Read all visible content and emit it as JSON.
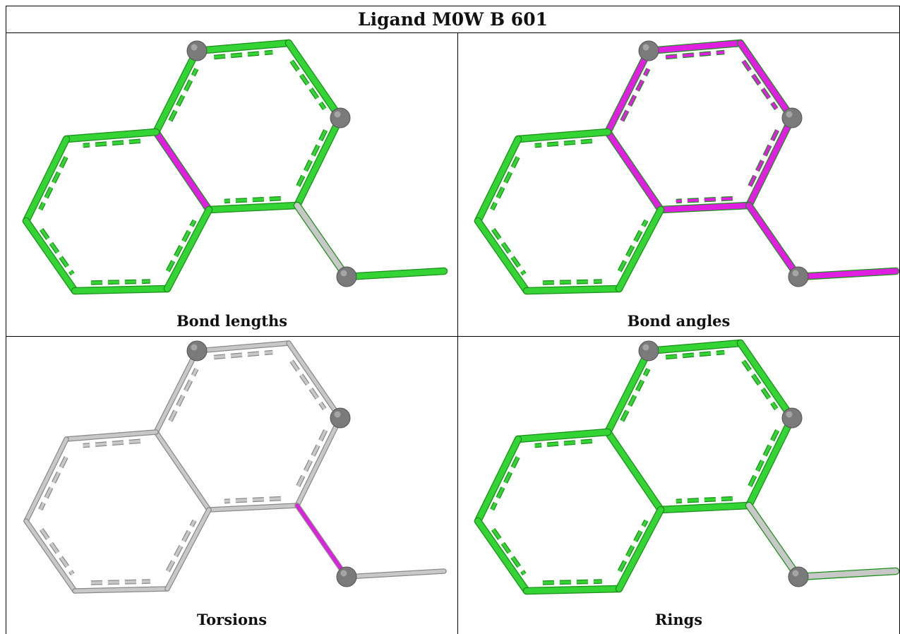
{
  "title": "Ligand M0W B 601",
  "panels": [
    {
      "caption": "Bond lengths",
      "highlight_color": "#e020e0",
      "base_color": "#33d433"
    },
    {
      "caption": "Bond angles",
      "highlight_color": "#e020e0",
      "base_color": "#33d433"
    },
    {
      "caption": "Torsions",
      "highlight_color": "#e020e0",
      "base_color": "#c8c8c8"
    },
    {
      "caption": "Rings",
      "highlight_color": "#e020e0",
      "base_color": "#33d433"
    }
  ],
  "atom_color": "#7a7a7a"
}
